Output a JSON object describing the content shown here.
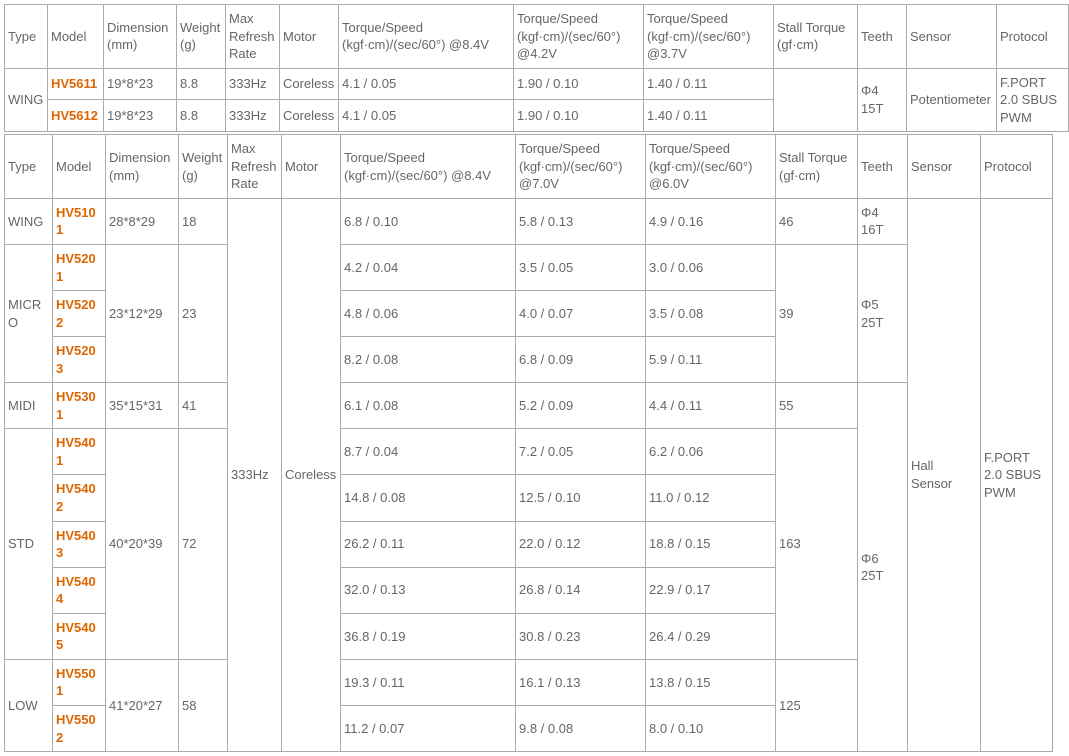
{
  "colors": {
    "text": "#666666",
    "link": "#dd6600",
    "border": "#aaaaaa",
    "bg": "#ffffff"
  },
  "headers": {
    "type": "Type",
    "model": "Model",
    "dimension": "Dimension (mm)",
    "weight": "Weight (g)",
    "refresh": "Max Refresh Rate",
    "motor": "Motor",
    "ts84": "Torque/Speed (kgf·cm)/(sec/60°) @8.4V",
    "ts42": "Torque/Speed (kgf·cm)/(sec/60°) @4.2V",
    "ts37": "Torque/Speed (kgf·cm)/(sec/60°) @3.7V",
    "ts70": "Torque/Speed (kgf·cm)/(sec/60°) @7.0V",
    "ts60": "Torque/Speed (kgf·cm)/(sec/60°) @6.0V",
    "stall": "Stall Torque (gf·cm)",
    "teeth": "Teeth",
    "sensor": "Sensor",
    "protocol": "Protocol"
  },
  "t1": {
    "type_wing": "WING",
    "stall": "",
    "teeth": "Φ4 15T",
    "sensor": "Potentiometer",
    "protocol": "F.PORT 2.0 SBUS PWM",
    "rows": [
      {
        "model": "HV5611",
        "dim": "19*8*23",
        "wt": "8.8",
        "rate": "333Hz",
        "motor": "Coreless",
        "a": "4.1 / 0.05",
        "b": "1.90 / 0.10",
        "c": "1.40 / 0.11"
      },
      {
        "model": "HV5612",
        "dim": "19*8*23",
        "wt": "8.8",
        "rate": "333Hz",
        "motor": "Coreless",
        "a": "4.1 / 0.05",
        "b": "1.90 / 0.10",
        "c": "1.40 / 0.11"
      }
    ]
  },
  "t2": {
    "rate": "333Hz",
    "motor": "Coreless",
    "sensor": "Hall Sensor",
    "protocol": "F.PORT 2.0 SBUS PWM",
    "groups": [
      {
        "type": "WING",
        "dim": "28*8*29",
        "wt": "18",
        "stall": "46",
        "teeth": "Φ4 16T",
        "rows": [
          {
            "model": "HV5101",
            "a": "6.8 / 0.10",
            "b": "5.8 / 0.13",
            "c": "4.9 / 0.16"
          }
        ]
      },
      {
        "type": "MICRO",
        "dim": "23*12*29",
        "wt": "23",
        "stall": "39",
        "teeth": "Φ5 25T",
        "rows": [
          {
            "model": "HV5201",
            "a": "4.2 / 0.04",
            "b": "3.5 / 0.05",
            "c": "3.0 / 0.06"
          },
          {
            "model": "HV5202",
            "a": " 4.8 / 0.06",
            "b": "4.0 / 0.07",
            "c": " 3.5 / 0.08"
          },
          {
            "model": "HV5203",
            "a": "8.2 / 0.08",
            "b": "6.8 / 0.09",
            "c": " 5.9 / 0.11"
          }
        ]
      },
      {
        "type": "MIDI",
        "dim": "35*15*31",
        "wt": "41",
        "stall": "55",
        "teeth_span_with_next": true,
        "rows": [
          {
            "model": "HV5301",
            "a": "6.1 / 0.08",
            "b": "5.2 / 0.09",
            "c": "4.4 / 0.11"
          }
        ]
      },
      {
        "type": "STD",
        "dim": "40*20*39",
        "wt": "72",
        "stall": "163",
        "teeth": "Φ6 25T",
        "rows": [
          {
            "model": "HV5401",
            "a": "8.7 / 0.04",
            "b": "7.2 / 0.05",
            "c": "6.2 / 0.06"
          },
          {
            "model": "HV5402",
            "a": "14.8 / 0.08",
            "b": "12.5 / 0.10",
            "c": "11.0 / 0.12"
          },
          {
            "model": "HV5403",
            "a": "26.2 / 0.11",
            "b": "22.0 / 0.12",
            "c": "18.8 / 0.15"
          },
          {
            "model": "HV5404",
            "a": "32.0 / 0.13",
            "b": "26.8 / 0.14",
            "c": "22.9 / 0.17"
          },
          {
            "model": "HV5405",
            "a": "36.8 / 0.19",
            "b": "30.8 / 0.23",
            "c": "26.4 / 0.29"
          }
        ]
      },
      {
        "type": "LOW",
        "dim": "41*20*27",
        "wt": "58",
        "stall": "125",
        "rows": [
          {
            "model": "HV5501",
            "a": "19.3 / 0.11",
            "b": "16.1 / 0.13",
            "c": "13.8 / 0.15"
          },
          {
            "model": "HV5502",
            "a": "11.2 / 0.07",
            "b": "9.8 / 0.08",
            "c": "8.0 / 0.10"
          }
        ]
      }
    ]
  }
}
